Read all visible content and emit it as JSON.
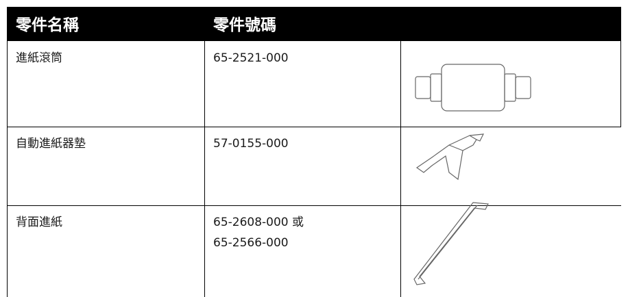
{
  "table": {
    "header": [
      "零件名稱",
      "零件號碼"
    ],
    "rows": [
      {
        "name": "進紙滾筒",
        "part_numbers": [
          "65-2521-000"
        ]
      },
      {
        "name": "自動進紙器墊",
        "part_numbers": [
          "57-0155-000"
        ]
      },
      {
        "name": "背面進紙",
        "part_numbers": [
          "65-2608-000 或",
          "65-2566-000"
        ]
      }
    ]
  }
}
